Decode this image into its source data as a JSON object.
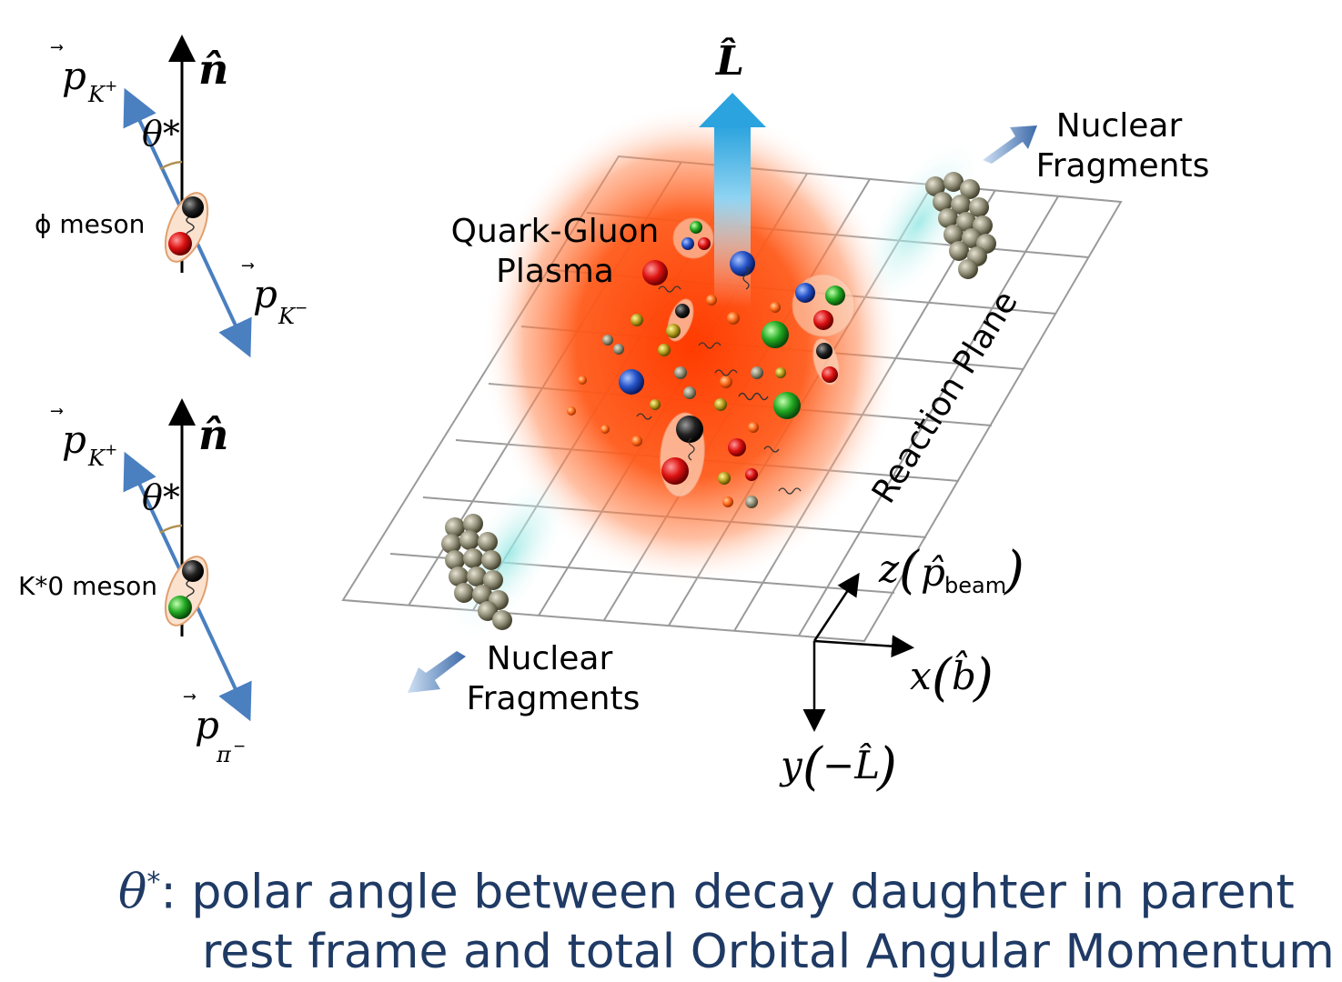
{
  "left_diagrams": [
    {
      "axis_label": "n̂",
      "angle_label": "θ*",
      "meson_label": "ϕ meson",
      "upper_daughter": {
        "symbol": "p",
        "subscript": "K",
        "superscript": "+"
      },
      "lower_daughter": {
        "symbol": "p",
        "subscript": "K",
        "superscript": "−"
      },
      "upper_quark_color": "#1a1a1a",
      "lower_quark_color": "#cc1a1a"
    },
    {
      "axis_label": "n̂",
      "angle_label": "θ*",
      "meson_label": "K*0 meson",
      "upper_daughter": {
        "symbol": "p",
        "subscript": "K",
        "superscript": "+"
      },
      "lower_daughter": {
        "symbol": "p",
        "subscript": "π",
        "superscript": "−"
      },
      "upper_quark_color": "#1a1a1a",
      "lower_quark_color": "#1aaa33"
    }
  ],
  "collision": {
    "L_label": "L̂",
    "qgp_label_line1": "Quark-Gluon",
    "qgp_label_line2": "Plasma",
    "nuclear_fragments_top_line1": "Nuclear",
    "nuclear_fragments_top_line2": "Fragments",
    "nuclear_fragments_bottom_line1": "Nuclear",
    "nuclear_fragments_bottom_line2": "Fragments",
    "reaction_plane": "Reaction Plane",
    "axes": {
      "z": "z",
      "z_arg": "p̂",
      "z_sub": "beam",
      "x": "x",
      "x_arg": "b̂",
      "y": "y",
      "y_arg": "−L̂"
    }
  },
  "caption": {
    "symbol": "θ",
    "symbol_sup": "*",
    "line1": ": polar angle between decay daughter in parent",
    "line2": "rest frame and total Orbital Angular Momentum"
  },
  "colors": {
    "arrow_blue": "#4a7fc0",
    "caption_text": "#1f3a64",
    "plasma": "#ff5a1a",
    "grid": "#9a9a9a",
    "L_arrow": "#3aa8dc"
  }
}
